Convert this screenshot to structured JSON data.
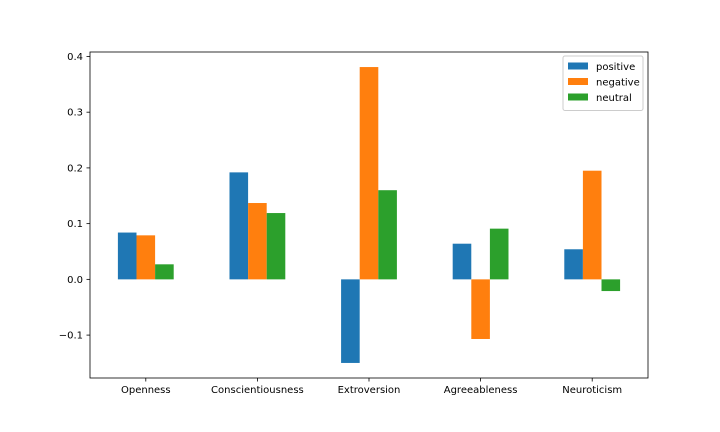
{
  "chart_data": {
    "type": "bar",
    "categories": [
      "Openness",
      "Conscientiousness",
      "Extroversion",
      "Agreeableness",
      "Neuroticism"
    ],
    "series": [
      {
        "name": "positive",
        "color": "#1f77b4",
        "values": [
          0.084,
          0.192,
          -0.15,
          0.064,
          0.054
        ]
      },
      {
        "name": "negative",
        "color": "#ff7f0e",
        "values": [
          0.079,
          0.137,
          0.381,
          -0.107,
          0.195
        ]
      },
      {
        "name": "neutral",
        "color": "#2ca02c",
        "values": [
          0.027,
          0.119,
          0.16,
          0.091,
          -0.021
        ]
      }
    ],
    "yticks": [
      -0.1,
      0.0,
      0.1,
      0.2,
      0.3,
      0.4
    ],
    "ytick_labels": [
      "−0.1",
      "0.0",
      "0.1",
      "0.2",
      "0.3",
      "0.4"
    ],
    "ylim": [
      -0.177,
      0.408
    ],
    "grid": false,
    "legend_position": "top-right"
  }
}
